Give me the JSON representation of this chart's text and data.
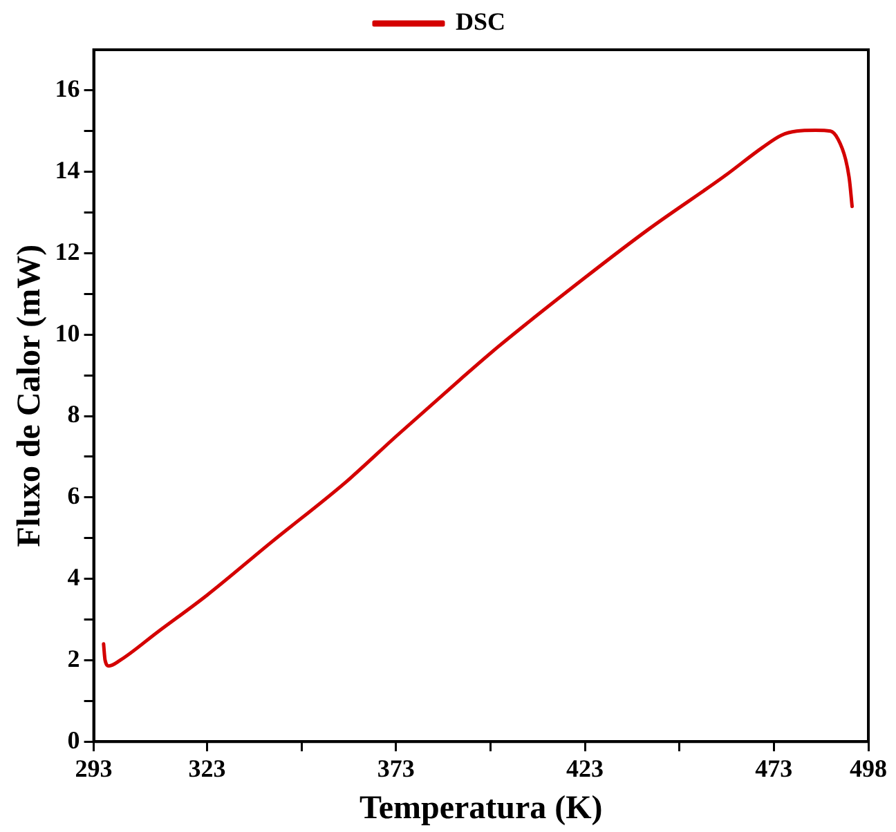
{
  "chart_data": {
    "type": "line",
    "xlabel": "Temperatura (K)",
    "ylabel": "Fluxo de Calor (mW)",
    "xlim": [
      293,
      498
    ],
    "xticks": [
      293,
      323,
      {
        "value": 348,
        "label": null
      },
      373,
      {
        "value": 398,
        "label": null
      },
      423,
      {
        "value": 448,
        "label": null
      },
      473,
      498
    ],
    "ylim": [
      0,
      17
    ],
    "yticks": [
      0,
      {
        "value": 1,
        "label": null
      },
      2,
      {
        "value": 3,
        "label": null
      },
      4,
      {
        "value": 5,
        "label": null
      },
      6,
      {
        "value": 7,
        "label": null
      },
      8,
      {
        "value": 9,
        "label": null
      },
      10,
      {
        "value": 11,
        "label": null
      },
      12,
      {
        "value": 13,
        "label": null
      },
      14,
      {
        "value": 15,
        "label": null
      },
      16
    ],
    "grid": false,
    "legend": "top",
    "marker": "none",
    "line_style": "solid",
    "series": [
      {
        "name": "DSC",
        "color": "#d40000",
        "x": [
          295.6,
          296,
          297,
          300,
          310,
          323,
          340,
          360,
          373,
          390,
          400,
          423,
          440,
          460,
          470,
          475,
          479,
          484,
          488,
          490,
          492,
          493,
          493.7
        ],
        "values": [
          2.4,
          2.0,
          1.86,
          2.0,
          2.7,
          3.6,
          4.9,
          6.4,
          7.5,
          8.9,
          9.7,
          11.4,
          12.6,
          13.9,
          14.6,
          14.9,
          15.0,
          15.02,
          15.0,
          14.8,
          14.3,
          13.8,
          13.15
        ]
      }
    ]
  }
}
